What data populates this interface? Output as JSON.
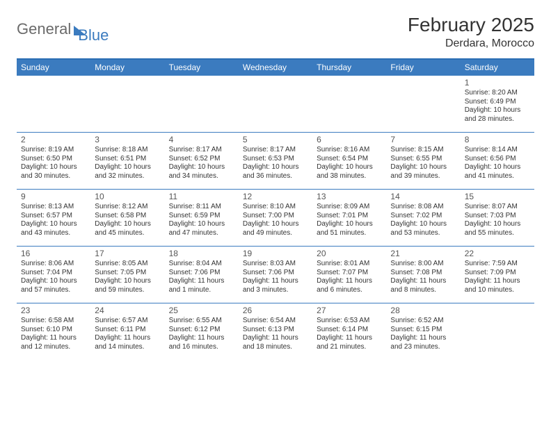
{
  "logo": {
    "part1": "General",
    "part2": "Blue"
  },
  "title": "February 2025",
  "subtitle": "Derdara, Morocco",
  "colors": {
    "header_bg": "#3b7bbf",
    "border": "#3b7bbf",
    "logo_gray": "#6a6a6a",
    "logo_blue": "#3b7bbf",
    "text": "#333333"
  },
  "day_names": [
    "Sunday",
    "Monday",
    "Tuesday",
    "Wednesday",
    "Thursday",
    "Friday",
    "Saturday"
  ],
  "weeks": [
    [
      null,
      null,
      null,
      null,
      null,
      null,
      {
        "n": "1",
        "sunrise": "8:20 AM",
        "sunset": "6:49 PM",
        "daylight": "10 hours and 28 minutes."
      }
    ],
    [
      {
        "n": "2",
        "sunrise": "8:19 AM",
        "sunset": "6:50 PM",
        "daylight": "10 hours and 30 minutes."
      },
      {
        "n": "3",
        "sunrise": "8:18 AM",
        "sunset": "6:51 PM",
        "daylight": "10 hours and 32 minutes."
      },
      {
        "n": "4",
        "sunrise": "8:17 AM",
        "sunset": "6:52 PM",
        "daylight": "10 hours and 34 minutes."
      },
      {
        "n": "5",
        "sunrise": "8:17 AM",
        "sunset": "6:53 PM",
        "daylight": "10 hours and 36 minutes."
      },
      {
        "n": "6",
        "sunrise": "8:16 AM",
        "sunset": "6:54 PM",
        "daylight": "10 hours and 38 minutes."
      },
      {
        "n": "7",
        "sunrise": "8:15 AM",
        "sunset": "6:55 PM",
        "daylight": "10 hours and 39 minutes."
      },
      {
        "n": "8",
        "sunrise": "8:14 AM",
        "sunset": "6:56 PM",
        "daylight": "10 hours and 41 minutes."
      }
    ],
    [
      {
        "n": "9",
        "sunrise": "8:13 AM",
        "sunset": "6:57 PM",
        "daylight": "10 hours and 43 minutes."
      },
      {
        "n": "10",
        "sunrise": "8:12 AM",
        "sunset": "6:58 PM",
        "daylight": "10 hours and 45 minutes."
      },
      {
        "n": "11",
        "sunrise": "8:11 AM",
        "sunset": "6:59 PM",
        "daylight": "10 hours and 47 minutes."
      },
      {
        "n": "12",
        "sunrise": "8:10 AM",
        "sunset": "7:00 PM",
        "daylight": "10 hours and 49 minutes."
      },
      {
        "n": "13",
        "sunrise": "8:09 AM",
        "sunset": "7:01 PM",
        "daylight": "10 hours and 51 minutes."
      },
      {
        "n": "14",
        "sunrise": "8:08 AM",
        "sunset": "7:02 PM",
        "daylight": "10 hours and 53 minutes."
      },
      {
        "n": "15",
        "sunrise": "8:07 AM",
        "sunset": "7:03 PM",
        "daylight": "10 hours and 55 minutes."
      }
    ],
    [
      {
        "n": "16",
        "sunrise": "8:06 AM",
        "sunset": "7:04 PM",
        "daylight": "10 hours and 57 minutes."
      },
      {
        "n": "17",
        "sunrise": "8:05 AM",
        "sunset": "7:05 PM",
        "daylight": "10 hours and 59 minutes."
      },
      {
        "n": "18",
        "sunrise": "8:04 AM",
        "sunset": "7:06 PM",
        "daylight": "11 hours and 1 minute."
      },
      {
        "n": "19",
        "sunrise": "8:03 AM",
        "sunset": "7:06 PM",
        "daylight": "11 hours and 3 minutes."
      },
      {
        "n": "20",
        "sunrise": "8:01 AM",
        "sunset": "7:07 PM",
        "daylight": "11 hours and 6 minutes."
      },
      {
        "n": "21",
        "sunrise": "8:00 AM",
        "sunset": "7:08 PM",
        "daylight": "11 hours and 8 minutes."
      },
      {
        "n": "22",
        "sunrise": "7:59 AM",
        "sunset": "7:09 PM",
        "daylight": "11 hours and 10 minutes."
      }
    ],
    [
      {
        "n": "23",
        "sunrise": "6:58 AM",
        "sunset": "6:10 PM",
        "daylight": "11 hours and 12 minutes."
      },
      {
        "n": "24",
        "sunrise": "6:57 AM",
        "sunset": "6:11 PM",
        "daylight": "11 hours and 14 minutes."
      },
      {
        "n": "25",
        "sunrise": "6:55 AM",
        "sunset": "6:12 PM",
        "daylight": "11 hours and 16 minutes."
      },
      {
        "n": "26",
        "sunrise": "6:54 AM",
        "sunset": "6:13 PM",
        "daylight": "11 hours and 18 minutes."
      },
      {
        "n": "27",
        "sunrise": "6:53 AM",
        "sunset": "6:14 PM",
        "daylight": "11 hours and 21 minutes."
      },
      {
        "n": "28",
        "sunrise": "6:52 AM",
        "sunset": "6:15 PM",
        "daylight": "11 hours and 23 minutes."
      },
      null
    ]
  ],
  "labels": {
    "sunrise": "Sunrise:",
    "sunset": "Sunset:",
    "daylight": "Daylight:"
  }
}
